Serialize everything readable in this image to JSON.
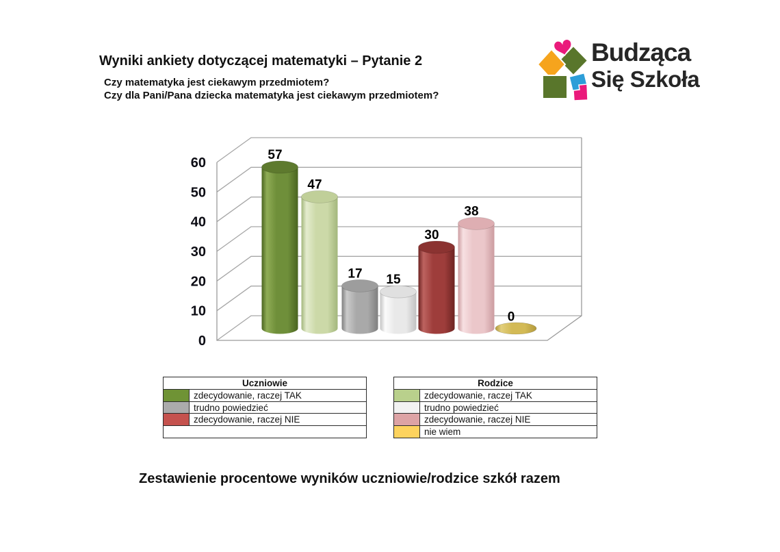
{
  "page": {
    "title": "Wyniki ankiety dotyczącej matematyki – Pytanie 2",
    "subtitle_line1": "Czy matematyka jest ciekawym przedmiotem?",
    "subtitle_line2": "Czy dla Pani/Pana dziecka matematyka jest ciekawym przedmiotem?",
    "footer_caption": "Zestawienie procentowe wyników uczniowie/rodzice szkół razem"
  },
  "logo": {
    "line1": "Budząca",
    "line2": "Się Szkoła",
    "colors": {
      "pink": "#ea1a7b",
      "green": "#59762b",
      "orange": "#f6a41d",
      "blue": "#2d9ed8"
    }
  },
  "chart_data": {
    "type": "bar",
    "style": "3d-cylinder",
    "title": "",
    "xlabel": "",
    "ylabel": "",
    "unit": "percent",
    "categories": [
      "uczniowie: zdecydowanie, raczej TAK",
      "rodzice: zdecydowanie, raczej TAK",
      "uczniowie: trudno powiedzieć",
      "rodzice: trudno powiedzieć",
      "uczniowie: zdecydowanie, raczej NIE",
      "rodzice: zdecydowanie, raczej NIE",
      "rodzice: nie wiem"
    ],
    "values": [
      57,
      47,
      17,
      15,
      30,
      38,
      0
    ],
    "bar_labels": [
      "57",
      "47",
      "17",
      "15",
      "30",
      "38",
      "0"
    ],
    "yticks": [
      0,
      10,
      20,
      30,
      40,
      50,
      60
    ],
    "ylim": [
      0,
      60
    ],
    "grid": true,
    "legend_position": "below",
    "bar_colors": [
      {
        "base": "#6f8f3a",
        "light": "#90ad56",
        "dark": "#4a6420",
        "top": "#5e7a2e"
      },
      {
        "base": "#ccd9a8",
        "light": "#e4ecce",
        "dark": "#a3b77c",
        "top": "#c0cf99"
      },
      {
        "base": "#a9a9a9",
        "light": "#cbcbcb",
        "dark": "#7f7f7f",
        "top": "#9d9d9d"
      },
      {
        "base": "#e9e9e9",
        "light": "#fbfbfb",
        "dark": "#c2c2c2",
        "top": "#e0e0e0"
      },
      {
        "base": "#9e3d3b",
        "light": "#bd6360",
        "dark": "#6d2422",
        "top": "#8b3331"
      },
      {
        "base": "#ebc7ca",
        "light": "#f7e0e2",
        "dark": "#cc9ca0",
        "top": "#deaeb2"
      },
      {
        "base": "#d3ba56",
        "light": "#e2cf7c",
        "dark": "#b29a3c",
        "top": "#d3ba56"
      }
    ]
  },
  "legends": [
    {
      "title": "Uczniowie",
      "empty_row": true,
      "items": [
        {
          "label": "zdecydowanie, raczej TAK",
          "color": "#6f9335"
        },
        {
          "label": "trudno powiedzieć",
          "color": "#ababab"
        },
        {
          "label": "zdecydowanie, raczej NIE",
          "color": "#c5524e"
        }
      ]
    },
    {
      "title": "Rodzice",
      "empty_row": false,
      "items": [
        {
          "label": "zdecydowanie, raczej TAK",
          "color": "#b9d08c"
        },
        {
          "label": "trudno powiedzieć",
          "color": "#f2f2f2"
        },
        {
          "label": "zdecydowanie, raczej NIE",
          "color": "#dda3a5"
        },
        {
          "label": "nie wiem",
          "color": "#fdd35e"
        }
      ]
    }
  ]
}
